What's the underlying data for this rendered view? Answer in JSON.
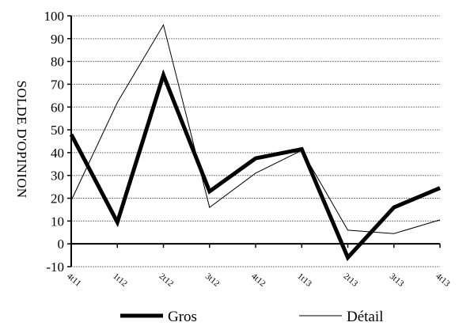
{
  "chart_data": {
    "type": "line",
    "title": "",
    "xlabel": "",
    "ylabel": "SOLDE D'OPINION",
    "categories": [
      "4t11",
      "1t12",
      "2t12",
      "3t12",
      "4t12",
      "1t13",
      "2t13",
      "3t13",
      "4t13"
    ],
    "ylim": [
      -10,
      100
    ],
    "yticks": [
      -10,
      0,
      10,
      20,
      30,
      40,
      50,
      60,
      70,
      80,
      90,
      100
    ],
    "grid": true,
    "legend_position": "bottom",
    "series": [
      {
        "name": "Gros",
        "values": [
          48,
          9.5,
          74,
          23,
          37.5,
          41.5,
          -6,
          16,
          24.5
        ],
        "style": "thick"
      },
      {
        "name": "Détail",
        "values": [
          19,
          62,
          96,
          16,
          31,
          41,
          6,
          4.5,
          10.5
        ],
        "style": "thin"
      }
    ],
    "colors": {
      "line": "#000000",
      "grid": "#808080",
      "background": "#ffffff"
    }
  }
}
